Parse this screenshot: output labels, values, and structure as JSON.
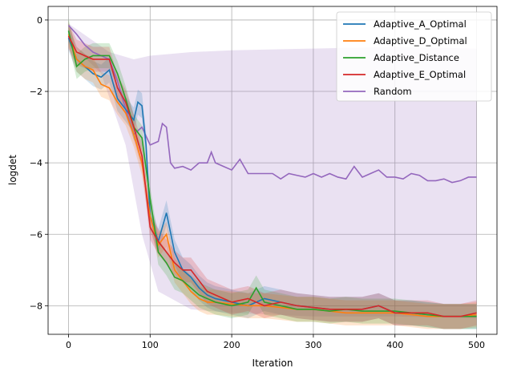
{
  "chart_data": {
    "type": "line",
    "title": "",
    "xlabel": "Iteration",
    "ylabel": "logdet",
    "xlim": [
      -25,
      525
    ],
    "ylim": [
      -8.8,
      0.38
    ],
    "xticks": [
      0,
      100,
      200,
      300,
      400,
      500
    ],
    "yticks": [
      0,
      -2,
      -4,
      -6,
      -8
    ],
    "xtick_labels": [
      "0",
      "100",
      "200",
      "300",
      "400",
      "500"
    ],
    "ytick_labels": [
      "0",
      "−2",
      "−4",
      "−6",
      "−8"
    ],
    "grid": true,
    "legend_position": "top-right",
    "series": [
      {
        "name": "Adaptive_A_Optimal",
        "color": "#1f77b4",
        "band_halfwidth": 0.35,
        "points": [
          [
            0,
            -0.5
          ],
          [
            10,
            -1.1
          ],
          [
            20,
            -1.3
          ],
          [
            30,
            -1.5
          ],
          [
            40,
            -1.6
          ],
          [
            50,
            -1.4
          ],
          [
            60,
            -2.2
          ],
          [
            70,
            -2.5
          ],
          [
            80,
            -2.8
          ],
          [
            85,
            -2.3
          ],
          [
            90,
            -2.4
          ],
          [
            95,
            -3.5
          ],
          [
            100,
            -5.5
          ],
          [
            110,
            -6.2
          ],
          [
            120,
            -5.4
          ],
          [
            130,
            -6.5
          ],
          [
            140,
            -7.0
          ],
          [
            150,
            -7.2
          ],
          [
            160,
            -7.5
          ],
          [
            170,
            -7.7
          ],
          [
            180,
            -7.8
          ],
          [
            200,
            -7.9
          ],
          [
            220,
            -8.0
          ],
          [
            240,
            -7.8
          ],
          [
            260,
            -7.9
          ],
          [
            280,
            -8.0
          ],
          [
            300,
            -8.05
          ],
          [
            320,
            -8.1
          ],
          [
            340,
            -8.1
          ],
          [
            360,
            -8.1
          ],
          [
            380,
            -8.0
          ],
          [
            400,
            -8.2
          ],
          [
            420,
            -8.2
          ],
          [
            440,
            -8.25
          ],
          [
            460,
            -8.3
          ],
          [
            480,
            -8.3
          ],
          [
            500,
            -8.3
          ]
        ]
      },
      {
        "name": "Adaptive_D_Optimal",
        "color": "#ff7f0e",
        "band_halfwidth": 0.35,
        "points": [
          [
            0,
            -0.4
          ],
          [
            10,
            -1.1
          ],
          [
            20,
            -1.3
          ],
          [
            30,
            -1.4
          ],
          [
            40,
            -1.8
          ],
          [
            50,
            -1.9
          ],
          [
            60,
            -2.3
          ],
          [
            70,
            -2.6
          ],
          [
            80,
            -3.2
          ],
          [
            90,
            -4.0
          ],
          [
            100,
            -5.5
          ],
          [
            110,
            -6.3
          ],
          [
            120,
            -6.0
          ],
          [
            130,
            -7.0
          ],
          [
            140,
            -7.3
          ],
          [
            150,
            -7.6
          ],
          [
            160,
            -7.8
          ],
          [
            170,
            -7.9
          ],
          [
            180,
            -7.9
          ],
          [
            200,
            -7.95
          ],
          [
            220,
            -8.0
          ],
          [
            240,
            -8.0
          ],
          [
            260,
            -8.05
          ],
          [
            280,
            -8.1
          ],
          [
            300,
            -8.1
          ],
          [
            320,
            -8.15
          ],
          [
            340,
            -8.2
          ],
          [
            360,
            -8.2
          ],
          [
            380,
            -8.2
          ],
          [
            400,
            -8.2
          ],
          [
            420,
            -8.25
          ],
          [
            440,
            -8.3
          ],
          [
            460,
            -8.3
          ],
          [
            480,
            -8.3
          ],
          [
            500,
            -8.25
          ]
        ]
      },
      {
        "name": "Adaptive_Distance",
        "color": "#2ca02c",
        "band_halfwidth": 0.35,
        "points": [
          [
            0,
            -0.3
          ],
          [
            10,
            -1.3
          ],
          [
            20,
            -1.1
          ],
          [
            30,
            -1.0
          ],
          [
            40,
            -1.0
          ],
          [
            50,
            -1.0
          ],
          [
            60,
            -1.5
          ],
          [
            70,
            -2.2
          ],
          [
            80,
            -3.0
          ],
          [
            90,
            -3.3
          ],
          [
            100,
            -5.0
          ],
          [
            110,
            -6.5
          ],
          [
            120,
            -6.8
          ],
          [
            130,
            -7.2
          ],
          [
            140,
            -7.3
          ],
          [
            150,
            -7.5
          ],
          [
            160,
            -7.7
          ],
          [
            170,
            -7.8
          ],
          [
            180,
            -7.9
          ],
          [
            200,
            -8.0
          ],
          [
            220,
            -7.9
          ],
          [
            230,
            -7.5
          ],
          [
            240,
            -7.9
          ],
          [
            260,
            -8.0
          ],
          [
            280,
            -8.1
          ],
          [
            300,
            -8.1
          ],
          [
            320,
            -8.15
          ],
          [
            340,
            -8.1
          ],
          [
            360,
            -8.15
          ],
          [
            380,
            -8.15
          ],
          [
            400,
            -8.15
          ],
          [
            420,
            -8.2
          ],
          [
            440,
            -8.25
          ],
          [
            460,
            -8.3
          ],
          [
            480,
            -8.3
          ],
          [
            500,
            -8.3
          ]
        ]
      },
      {
        "name": "Adaptive_E_Optimal",
        "color": "#d62728",
        "band_halfwidth": 0.35,
        "points": [
          [
            0,
            -0.45
          ],
          [
            10,
            -0.9
          ],
          [
            20,
            -1.0
          ],
          [
            30,
            -1.1
          ],
          [
            40,
            -1.1
          ],
          [
            50,
            -1.1
          ],
          [
            60,
            -1.9
          ],
          [
            70,
            -2.3
          ],
          [
            80,
            -3.0
          ],
          [
            90,
            -3.8
          ],
          [
            100,
            -5.8
          ],
          [
            110,
            -6.2
          ],
          [
            120,
            -6.5
          ],
          [
            130,
            -6.8
          ],
          [
            140,
            -7.0
          ],
          [
            150,
            -7.0
          ],
          [
            160,
            -7.3
          ],
          [
            170,
            -7.6
          ],
          [
            180,
            -7.7
          ],
          [
            200,
            -7.9
          ],
          [
            220,
            -7.8
          ],
          [
            240,
            -8.0
          ],
          [
            260,
            -7.9
          ],
          [
            280,
            -8.0
          ],
          [
            300,
            -8.05
          ],
          [
            320,
            -8.1
          ],
          [
            340,
            -8.1
          ],
          [
            360,
            -8.1
          ],
          [
            380,
            -8.0
          ],
          [
            400,
            -8.2
          ],
          [
            420,
            -8.2
          ],
          [
            440,
            -8.2
          ],
          [
            460,
            -8.3
          ],
          [
            480,
            -8.3
          ],
          [
            500,
            -8.2
          ]
        ]
      },
      {
        "name": "Random",
        "color": "#9467bd",
        "band_upper": [
          [
            0,
            -0.1
          ],
          [
            50,
            -0.9
          ],
          [
            80,
            -1.1
          ],
          [
            100,
            -1.0
          ],
          [
            150,
            -0.9
          ],
          [
            200,
            -0.85
          ],
          [
            300,
            -0.8
          ],
          [
            400,
            -0.75
          ],
          [
            500,
            -0.8
          ]
        ],
        "band_lower": [
          [
            0,
            -0.6
          ],
          [
            40,
            -1.5
          ],
          [
            70,
            -3.5
          ],
          [
            90,
            -6.0
          ],
          [
            110,
            -7.6
          ],
          [
            150,
            -8.1
          ],
          [
            200,
            -8.2
          ],
          [
            300,
            -8.3
          ],
          [
            400,
            -8.3
          ],
          [
            500,
            -8.35
          ]
        ],
        "points": [
          [
            0,
            -0.15
          ],
          [
            10,
            -0.4
          ],
          [
            20,
            -0.7
          ],
          [
            30,
            -0.9
          ],
          [
            40,
            -1.0
          ],
          [
            50,
            -1.1
          ],
          [
            60,
            -1.7
          ],
          [
            70,
            -2.5
          ],
          [
            80,
            -3.2
          ],
          [
            90,
            -3.0
          ],
          [
            100,
            -3.5
          ],
          [
            110,
            -3.4
          ],
          [
            115,
            -2.9
          ],
          [
            120,
            -3.0
          ],
          [
            125,
            -4.0
          ],
          [
            130,
            -4.15
          ],
          [
            140,
            -4.1
          ],
          [
            150,
            -4.2
          ],
          [
            160,
            -4.0
          ],
          [
            170,
            -4.0
          ],
          [
            175,
            -3.7
          ],
          [
            180,
            -4.0
          ],
          [
            190,
            -4.1
          ],
          [
            200,
            -4.2
          ],
          [
            210,
            -3.9
          ],
          [
            220,
            -4.3
          ],
          [
            230,
            -4.3
          ],
          [
            240,
            -4.3
          ],
          [
            250,
            -4.3
          ],
          [
            260,
            -4.45
          ],
          [
            270,
            -4.3
          ],
          [
            280,
            -4.35
          ],
          [
            290,
            -4.4
          ],
          [
            300,
            -4.3
          ],
          [
            310,
            -4.4
          ],
          [
            320,
            -4.3
          ],
          [
            330,
            -4.4
          ],
          [
            340,
            -4.45
          ],
          [
            350,
            -4.1
          ],
          [
            360,
            -4.4
          ],
          [
            370,
            -4.3
          ],
          [
            380,
            -4.2
          ],
          [
            390,
            -4.4
          ],
          [
            400,
            -4.4
          ],
          [
            410,
            -4.45
          ],
          [
            420,
            -4.3
          ],
          [
            430,
            -4.35
          ],
          [
            440,
            -4.5
          ],
          [
            450,
            -4.5
          ],
          [
            460,
            -4.45
          ],
          [
            470,
            -4.55
          ],
          [
            480,
            -4.5
          ],
          [
            490,
            -4.4
          ],
          [
            500,
            -4.4
          ]
        ]
      }
    ]
  }
}
